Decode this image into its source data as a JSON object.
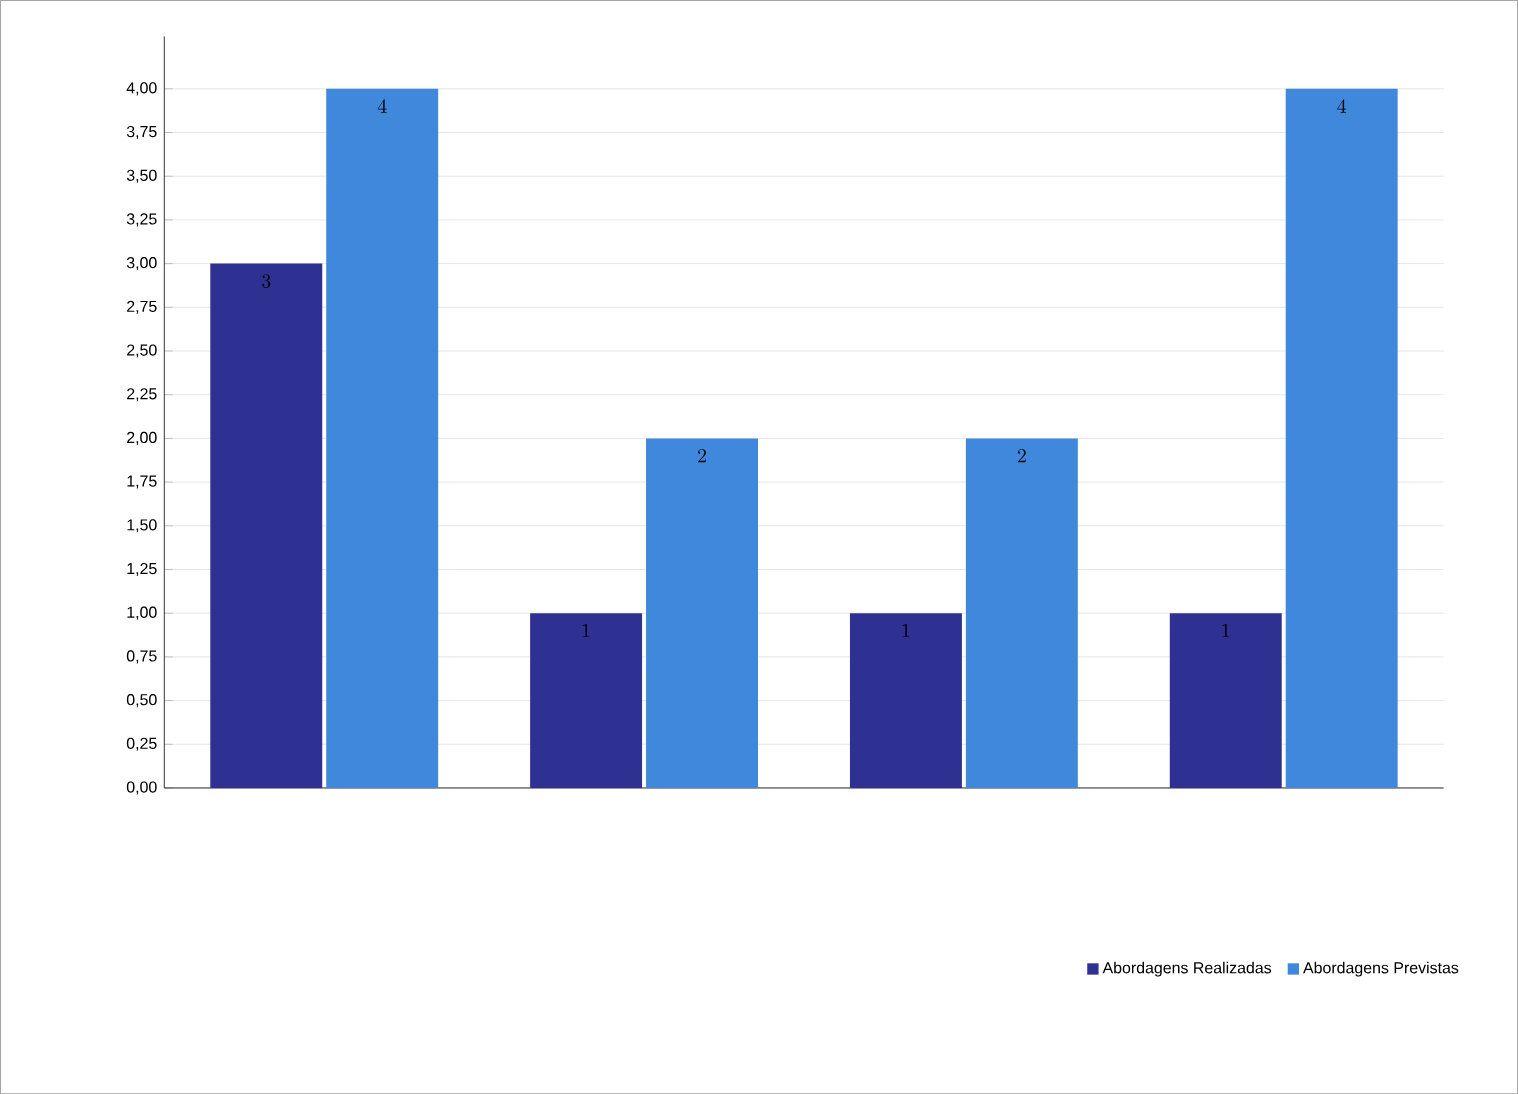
{
  "chart_data": {
    "type": "bar",
    "categories": [
      null,
      null,
      null,
      null
    ],
    "series": [
      {
        "name": "Abordagens Realizadas",
        "color": "#2e3192",
        "values": [
          3,
          1,
          1,
          1
        ]
      },
      {
        "name": "Abordagens Previstas",
        "color": "#3f88dc",
        "values": [
          4,
          2,
          2,
          4
        ]
      }
    ],
    "ylim": [
      0,
      4.3
    ],
    "yticks": [
      {
        "value": 0,
        "label": "0,00"
      },
      {
        "value": 0.25,
        "label": "0,25"
      },
      {
        "value": 0.5,
        "label": "0,50"
      },
      {
        "value": 0.75,
        "label": "0,75"
      },
      {
        "value": 1,
        "label": "1,00"
      },
      {
        "value": 1.25,
        "label": "1,25"
      },
      {
        "value": 1.5,
        "label": "1,50"
      },
      {
        "value": 1.75,
        "label": "1,75"
      },
      {
        "value": 2,
        "label": "2,00"
      },
      {
        "value": 2.25,
        "label": "2,25"
      },
      {
        "value": 2.5,
        "label": "2,50"
      },
      {
        "value": 2.75,
        "label": "2,75"
      },
      {
        "value": 3,
        "label": "3,00"
      },
      {
        "value": 3.25,
        "label": "3,25"
      },
      {
        "value": 3.5,
        "label": "3,50"
      },
      {
        "value": 3.75,
        "label": "3,75"
      },
      {
        "value": 4,
        "label": "4,00"
      }
    ],
    "grid": "y",
    "legend": "bottom right",
    "data_labels": true
  }
}
